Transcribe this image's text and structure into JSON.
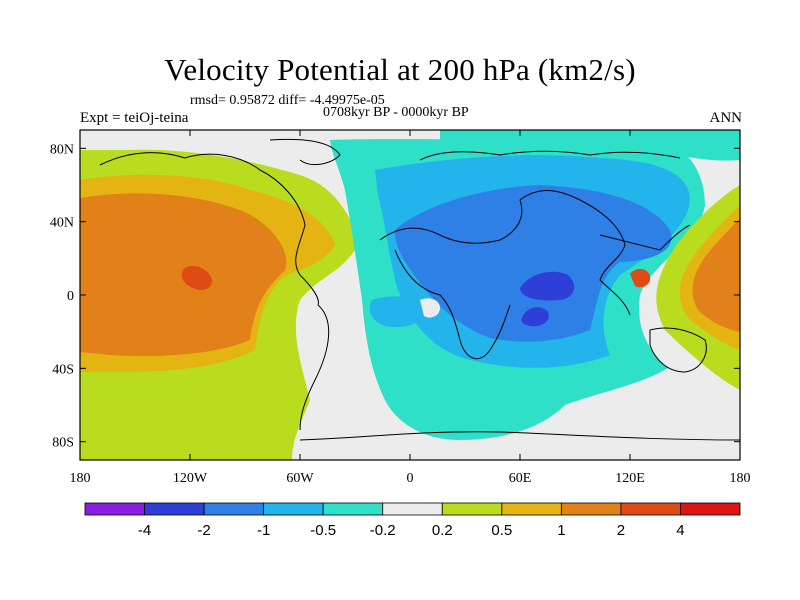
{
  "title": "Velocity Potential at 200 hPa (km2/s)",
  "stats": "rmsd= 0.95872 diff= -4.49975e-05",
  "left_label": "Expt = teiOj-teina",
  "center_label": "0708kyr BP - 0000kyr BP",
  "right_label": "ANN",
  "axes": {
    "x_ticks": [
      "180",
      "120W",
      "60W",
      "0",
      "60E",
      "120E",
      "180"
    ],
    "y_ticks": [
      "80N",
      "40N",
      "0",
      "40S",
      "80S"
    ]
  },
  "colorbar": {
    "labels": [
      "-4",
      "-2",
      "-1",
      "-0.5",
      "-0.2",
      "0.2",
      "0.5",
      "1",
      "2",
      "4"
    ],
    "colors": [
      "#8a1ee0",
      "#2d3fd6",
      "#2f80e6",
      "#22b4ea",
      "#2ee0c8",
      "#ececec",
      "#b9dc1e",
      "#e4b412",
      "#e2801a",
      "#e04a14",
      "#e01414"
    ]
  },
  "palette": {
    "neg4": "#8a1ee0",
    "neg2": "#2d3fd6",
    "neg1": "#2f80e6",
    "neg05": "#22b4ea",
    "neg02": "#2ee0c8",
    "zero": "#ececec",
    "pos02": "#b9dc1e",
    "pos05": "#e4b412",
    "pos1": "#e2801a",
    "pos2": "#e04a14"
  }
}
